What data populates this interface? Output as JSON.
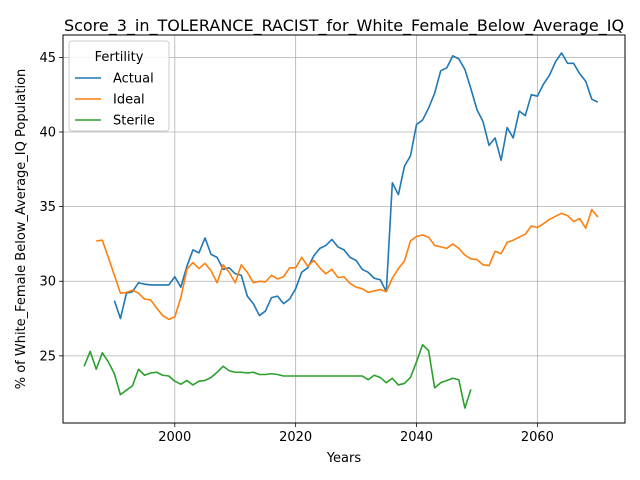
{
  "chart_data": {
    "type": "line",
    "title": "Score_3_in_TOLERANCE_RACIST_for_White_Female_Below_Average_IQ",
    "xlabel": "Years",
    "ylabel": "% of White_Female Below_Average_IQ Population",
    "xlim": [
      1981.5,
      2074.5
    ],
    "ylim": [
      20.5,
      46.5
    ],
    "xticks": [
      2000,
      2020,
      2040,
      2060
    ],
    "yticks": [
      25,
      30,
      35,
      40,
      45
    ],
    "grid": true,
    "legend": {
      "title": "Fertility",
      "placement": "top-left"
    },
    "series": [
      {
        "name": "Actual",
        "color": "#1f77b4",
        "x": [
          1990,
          1991,
          1992,
          1993,
          1994,
          1995,
          1996,
          1997,
          1998,
          1999,
          2000,
          2001,
          2002,
          2003,
          2004,
          2005,
          2006,
          2007,
          2008,
          2009,
          2010,
          2011,
          2012,
          2013,
          2014,
          2015,
          2016,
          2017,
          2018,
          2019,
          2020,
          2021,
          2022,
          2023,
          2024,
          2025,
          2026,
          2027,
          2028,
          2029,
          2030,
          2031,
          2032,
          2033,
          2034,
          2035,
          2036,
          2037,
          2038,
          2039,
          2040,
          2041,
          2042,
          2043,
          2044,
          2045,
          2046,
          2047,
          2048,
          2049,
          2050,
          2051,
          2052,
          2053,
          2054,
          2055,
          2056,
          2057,
          2058,
          2059,
          2060,
          2061,
          2062,
          2063,
          2064,
          2065,
          2066,
          2067,
          2068,
          2069,
          2070
        ],
        "values": [
          28.7,
          27.5,
          29.2,
          29.3,
          29.9,
          29.8,
          29.75,
          29.75,
          29.75,
          29.75,
          30.3,
          29.6,
          31.0,
          32.1,
          31.9,
          32.9,
          31.8,
          31.6,
          30.8,
          30.9,
          30.5,
          30.4,
          29.0,
          28.5,
          27.7,
          28.0,
          28.9,
          29.0,
          28.5,
          28.8,
          29.5,
          30.6,
          30.9,
          31.7,
          32.2,
          32.4,
          32.8,
          32.3,
          32.1,
          31.6,
          31.4,
          30.8,
          30.6,
          30.2,
          30.1,
          29.3,
          36.6,
          35.8,
          37.7,
          38.4,
          40.5,
          40.8,
          41.6,
          42.6,
          44.1,
          44.3,
          45.1,
          44.9,
          44.2,
          42.9,
          41.5,
          40.7,
          39.1,
          39.6,
          38.1,
          40.3,
          39.6,
          41.4,
          41.1,
          42.5,
          42.4,
          43.2,
          43.8,
          44.7,
          45.3,
          44.6,
          44.6,
          43.9,
          43.4,
          42.2,
          42.0
        ]
      },
      {
        "name": "Ideal",
        "color": "#ff7f0e",
        "x": [
          1987,
          1988,
          1989,
          1990,
          1991,
          1992,
          1993,
          1994,
          1995,
          1996,
          1997,
          1998,
          1999,
          2000,
          2001,
          2002,
          2003,
          2004,
          2005,
          2006,
          2007,
          2008,
          2009,
          2010,
          2011,
          2012,
          2013,
          2014,
          2015,
          2016,
          2017,
          2018,
          2019,
          2020,
          2021,
          2022,
          2023,
          2024,
          2025,
          2026,
          2027,
          2028,
          2029,
          2030,
          2031,
          2032,
          2033,
          2034,
          2035,
          2036,
          2037,
          2038,
          2039,
          2040,
          2041,
          2042,
          2043,
          2044,
          2045,
          2046,
          2047,
          2048,
          2049,
          2050,
          2051,
          2052,
          2053,
          2054,
          2055,
          2056,
          2057,
          2058,
          2059,
          2060,
          2061,
          2062,
          2063,
          2064,
          2065,
          2066,
          2067,
          2068,
          2069,
          2070
        ],
        "values": [
          32.7,
          32.75,
          31.6,
          30.4,
          29.2,
          29.25,
          29.4,
          29.2,
          28.8,
          28.75,
          28.2,
          27.7,
          27.45,
          27.6,
          28.9,
          30.8,
          31.25,
          30.85,
          31.2,
          30.7,
          29.9,
          31.1,
          30.6,
          29.9,
          31.1,
          30.6,
          29.9,
          30.0,
          29.95,
          30.4,
          30.15,
          30.3,
          30.9,
          30.9,
          31.6,
          31.0,
          31.4,
          30.9,
          30.5,
          30.8,
          30.25,
          30.3,
          29.85,
          29.6,
          29.5,
          29.25,
          29.35,
          29.45,
          29.3,
          30.2,
          30.85,
          31.35,
          32.7,
          33.0,
          33.1,
          32.95,
          32.4,
          32.3,
          32.2,
          32.5,
          32.2,
          31.75,
          31.5,
          31.45,
          31.1,
          31.05,
          32.0,
          31.85,
          32.6,
          32.75,
          32.95,
          33.15,
          33.7,
          33.6,
          33.85,
          34.15,
          34.35,
          34.55,
          34.4,
          34.0,
          34.2,
          33.55,
          34.8,
          34.3
        ]
      },
      {
        "name": "Sterile",
        "color": "#2ca02c",
        "x": [
          1985,
          1986,
          1987,
          1988,
          1989,
          1990,
          1991,
          1992,
          1993,
          1994,
          1995,
          1996,
          1997,
          1998,
          1999,
          2000,
          2001,
          2002,
          2003,
          2004,
          2005,
          2006,
          2007,
          2008,
          2009,
          2010,
          2011,
          2012,
          2013,
          2014,
          2015,
          2016,
          2017,
          2018,
          2019,
          2020,
          2021,
          2022,
          2023,
          2024,
          2025,
          2026,
          2027,
          2028,
          2029,
          2030,
          2031,
          2032,
          2033,
          2034,
          2035,
          2036,
          2037,
          2038,
          2039,
          2040,
          2041,
          2042,
          2043,
          2044,
          2045,
          2046,
          2047,
          2048,
          2049
        ],
        "values": [
          24.3,
          25.3,
          24.1,
          25.2,
          24.6,
          23.8,
          22.4,
          22.7,
          23.0,
          24.1,
          23.7,
          23.85,
          23.9,
          23.7,
          23.65,
          23.3,
          23.1,
          23.35,
          23.05,
          23.3,
          23.35,
          23.55,
          23.9,
          24.3,
          24.0,
          23.9,
          23.9,
          23.85,
          23.9,
          23.75,
          23.75,
          23.8,
          23.75,
          23.65,
          23.65,
          23.65,
          23.65,
          23.65,
          23.65,
          23.65,
          23.65,
          23.65,
          23.65,
          23.65,
          23.65,
          23.65,
          23.65,
          23.4,
          23.7,
          23.55,
          23.2,
          23.5,
          23.05,
          23.15,
          23.55,
          24.6,
          25.75,
          25.35,
          22.85,
          23.2,
          23.35,
          23.5,
          23.4,
          21.5,
          22.75
        ]
      }
    ]
  }
}
